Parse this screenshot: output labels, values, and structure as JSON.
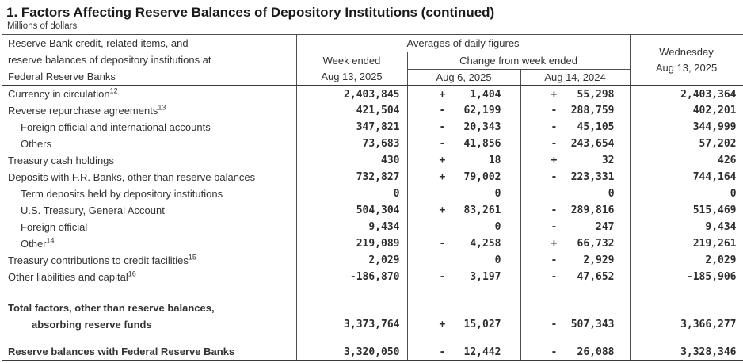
{
  "title": "1. Factors Affecting Reserve Balances of Depository Institutions (continued)",
  "subtitle": "Millions of dollars",
  "table": {
    "header": {
      "stub_lines": {
        "0": "Reserve Bank credit, related items, and",
        "1": "reserve balances of depository institutions at",
        "2": "Federal Reserve Banks"
      },
      "averages_label": "Averages of daily figures",
      "week_ended_label": "Week ended",
      "week_ended_date": "Aug 13, 2025",
      "change_label": "Change from week ended",
      "change_col1_date": "Aug 6, 2025",
      "change_col2_date": "Aug 14, 2024",
      "wednesday_label": "Wednesday",
      "wednesday_date": "Aug 13, 2025"
    },
    "rows": [
      {
        "type": "data",
        "label": "Currency in circulation",
        "sup": "12",
        "indent": false,
        "week": "2,403,845",
        "chg1": {
          "sign": "+",
          "value": "1,404"
        },
        "chg2": {
          "sign": "+",
          "value": "55,298"
        },
        "wed": "2,403,364"
      },
      {
        "type": "data",
        "label": "Reverse repurchase agreements",
        "sup": "13",
        "indent": false,
        "week": "421,504",
        "chg1": {
          "sign": "-",
          "value": "62,199"
        },
        "chg2": {
          "sign": "-",
          "value": "288,759"
        },
        "wed": "402,201"
      },
      {
        "type": "data",
        "label": "Foreign official and international accounts",
        "indent": true,
        "week": "347,821",
        "chg1": {
          "sign": "-",
          "value": "20,343"
        },
        "chg2": {
          "sign": "-",
          "value": "45,105"
        },
        "wed": "344,999"
      },
      {
        "type": "data",
        "label": "Others",
        "indent": true,
        "week": "73,683",
        "chg1": {
          "sign": "-",
          "value": "41,856"
        },
        "chg2": {
          "sign": "-",
          "value": "243,654"
        },
        "wed": "57,202"
      },
      {
        "type": "data",
        "label": "Treasury cash holdings",
        "indent": false,
        "week": "430",
        "chg1": {
          "sign": "+",
          "value": "18"
        },
        "chg2": {
          "sign": "+",
          "value": "32"
        },
        "wed": "426"
      },
      {
        "type": "data",
        "label": "Deposits with F.R. Banks, other than reserve balances",
        "indent": false,
        "week": "732,827",
        "chg1": {
          "sign": "+",
          "value": "79,002"
        },
        "chg2": {
          "sign": "-",
          "value": "223,331"
        },
        "wed": "744,164"
      },
      {
        "type": "data",
        "label": "Term deposits held by depository institutions",
        "indent": true,
        "week": "0",
        "chg1": {
          "sign": "",
          "value": "0"
        },
        "chg2": {
          "sign": "",
          "value": "0"
        },
        "wed": "0"
      },
      {
        "type": "data",
        "label": "U.S. Treasury, General Account",
        "indent": true,
        "week": "504,304",
        "chg1": {
          "sign": "+",
          "value": "83,261"
        },
        "chg2": {
          "sign": "-",
          "value": "289,816"
        },
        "wed": "515,469"
      },
      {
        "type": "data",
        "label": "Foreign official",
        "indent": true,
        "week": "9,434",
        "chg1": {
          "sign": "",
          "value": "0"
        },
        "chg2": {
          "sign": "-",
          "value": "247"
        },
        "wed": "9,434"
      },
      {
        "type": "data",
        "label": "Other",
        "sup": "14",
        "indent": true,
        "week": "219,089",
        "chg1": {
          "sign": "-",
          "value": "4,258"
        },
        "chg2": {
          "sign": "+",
          "value": "66,732"
        },
        "wed": "219,261"
      },
      {
        "type": "data",
        "label": "Treasury contributions to credit facilities",
        "sup": "15",
        "indent": false,
        "week": "2,029",
        "chg1": {
          "sign": "",
          "value": "0"
        },
        "chg2": {
          "sign": "-",
          "value": "2,929"
        },
        "wed": "2,029"
      },
      {
        "type": "data",
        "label": "Other liabilities and capital",
        "sup": "16",
        "indent": false,
        "week": "-186,870",
        "chg1": {
          "sign": "-",
          "value": "3,197"
        },
        "chg2": {
          "sign": "-",
          "value": "47,652"
        },
        "wed": "-185,906"
      },
      {
        "type": "spacer",
        "h": 18
      },
      {
        "type": "data",
        "bold": true,
        "tall": true,
        "label": "Total factors, other than reserve balances,",
        "label2": "absorbing reserve funds",
        "week": "3,373,764",
        "chg1": {
          "sign": "+",
          "value": "15,027"
        },
        "chg2": {
          "sign": "-",
          "value": "507,343"
        },
        "wed": "3,366,277"
      },
      {
        "type": "spacer",
        "h": 14
      },
      {
        "type": "data",
        "bold": true,
        "label": "Reserve balances with Federal Reserve Banks",
        "week": "3,320,050",
        "chg1": {
          "sign": "-",
          "value": "12,442"
        },
        "chg2": {
          "sign": "-",
          "value": "26,088"
        },
        "wed": "3,328,346"
      }
    ]
  }
}
